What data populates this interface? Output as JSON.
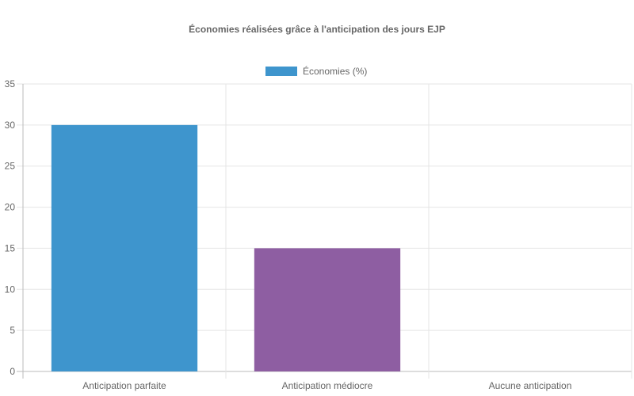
{
  "chart_data": {
    "type": "bar",
    "title": "Économies réalisées grâce à l'anticipation des jours EJP",
    "categories": [
      "Anticipation parfaite",
      "Anticipation médiocre",
      "Aucune anticipation"
    ],
    "series": [
      {
        "name": "Économies (%)",
        "values": [
          30,
          15,
          0
        ],
        "colors": [
          "#3e95cd",
          "#8e5ea2",
          "#3cba9f"
        ]
      }
    ],
    "legend_color": "#3e95cd",
    "ylim": [
      0,
      35
    ],
    "yticks": [
      0,
      5,
      10,
      15,
      20,
      25,
      30,
      35
    ],
    "grid": true,
    "legend_position": "top"
  }
}
